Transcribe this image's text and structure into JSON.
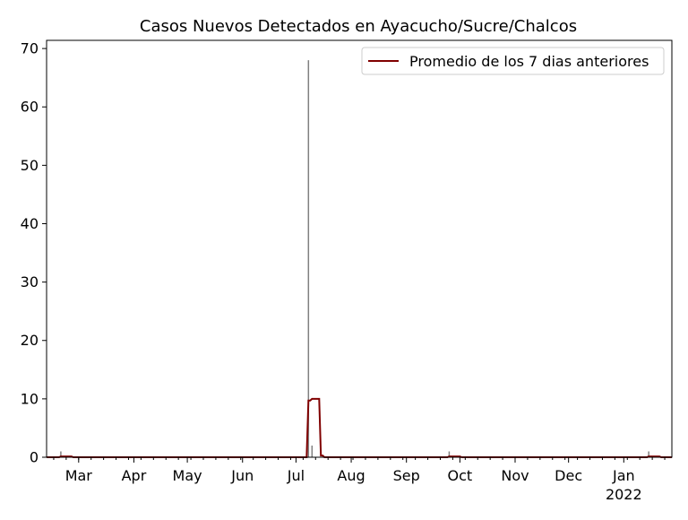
{
  "chart_data": {
    "type": "bar",
    "title": "Casos Nuevos Detectados en Ayacucho/Sucre/Chalcos",
    "xlabel": "",
    "ylabel": "",
    "x_range": [
      "2021-02-11",
      "2022-01-28"
    ],
    "ylim": [
      0,
      71.4
    ],
    "y_ticks": [
      0,
      10,
      20,
      30,
      40,
      50,
      60,
      70
    ],
    "x_ticks": [
      {
        "date": "2021-03-01",
        "label": "Mar"
      },
      {
        "date": "2021-04-01",
        "label": "Apr"
      },
      {
        "date": "2021-05-01",
        "label": "May"
      },
      {
        "date": "2021-06-01",
        "label": "Jun"
      },
      {
        "date": "2021-07-01",
        "label": "Jul"
      },
      {
        "date": "2021-08-01",
        "label": "Aug"
      },
      {
        "date": "2021-09-01",
        "label": "Sep"
      },
      {
        "date": "2021-10-01",
        "label": "Oct"
      },
      {
        "date": "2021-11-01",
        "label": "Nov"
      },
      {
        "date": "2021-12-01",
        "label": "Dec"
      },
      {
        "date": "2022-01-01",
        "label": "Jan",
        "sublabel": "2022"
      }
    ],
    "grid": false,
    "legend_position": "top-right",
    "series": [
      {
        "kind": "bar",
        "color": "#808080",
        "note_zero_elsewhere": true,
        "points": [
          {
            "date": "2021-02-19",
            "value": 1
          },
          {
            "date": "2021-07-08",
            "value": 68
          },
          {
            "date": "2021-07-10",
            "value": 2
          },
          {
            "date": "2021-09-25",
            "value": 1
          },
          {
            "date": "2022-01-15",
            "value": 1
          }
        ]
      },
      {
        "kind": "line",
        "name": "Promedio de los 7 dias anteriores",
        "color": "#800000",
        "window_days": 7
      }
    ]
  }
}
